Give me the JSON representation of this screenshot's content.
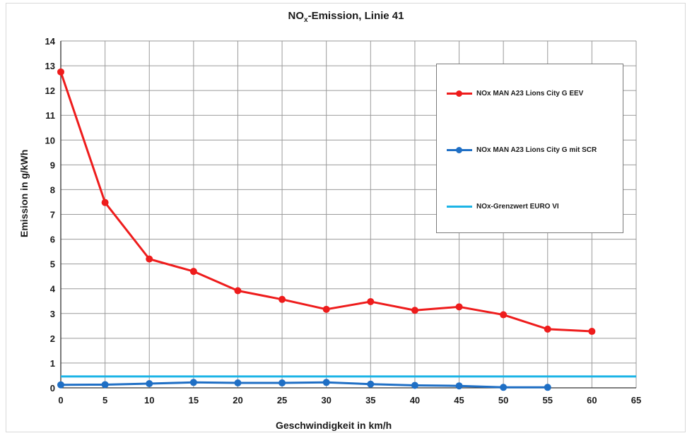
{
  "chart_data": {
    "type": "line",
    "title": {
      "main": "NO",
      "sub": "x",
      "rest": "-Emission, Linie 41"
    },
    "xlabel": "Geschwindigkeit in km/h",
    "ylabel": "Emission in g/kWh",
    "xlim": [
      0,
      65
    ],
    "ylim": [
      0,
      14
    ],
    "xticks": [
      "0",
      "5",
      "10",
      "15",
      "20",
      "25",
      "30",
      "35",
      "40",
      "45",
      "50",
      "55",
      "60",
      "65"
    ],
    "yticks": [
      "0",
      "1",
      "2",
      "3",
      "4",
      "5",
      "6",
      "7",
      "8",
      "9",
      "10",
      "11",
      "12",
      "13",
      "14"
    ],
    "grid": true,
    "legend_position": "top-right",
    "series": [
      {
        "name": "NOx MAN A23 Lions City G EEV",
        "color": "#ee1c1c",
        "markers": true,
        "x": [
          0,
          5,
          10,
          15,
          20,
          25,
          30,
          35,
          40,
          45,
          50,
          55,
          60
        ],
        "values": [
          12.75,
          7.48,
          5.2,
          4.7,
          3.92,
          3.57,
          3.17,
          3.48,
          3.13,
          3.27,
          2.95,
          2.37,
          2.28
        ]
      },
      {
        "name": "NOx MAN A23 Lions City G mit SCR",
        "color": "#1f6fc5",
        "markers": true,
        "x": [
          0,
          5,
          10,
          15,
          20,
          25,
          30,
          35,
          40,
          45,
          50,
          55
        ],
        "values": [
          0.12,
          0.13,
          0.17,
          0.22,
          0.2,
          0.2,
          0.22,
          0.15,
          0.1,
          0.08,
          0.02,
          0.02
        ]
      },
      {
        "name": "NOx-Grenzwert EURO VI",
        "color": "#1cb4e6",
        "markers": false,
        "x": [
          0,
          65
        ],
        "values": [
          0.46,
          0.46
        ]
      }
    ]
  }
}
